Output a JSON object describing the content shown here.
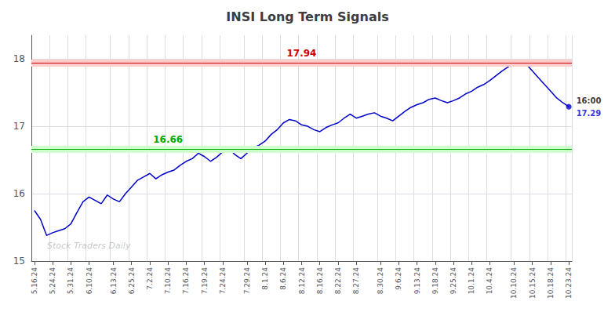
{
  "chart_data": {
    "type": "line",
    "title": "INSI Long Term Signals",
    "categories": [
      "5.16.24",
      null,
      null,
      "5.24.24",
      null,
      null,
      "5.31.24",
      null,
      null,
      "6.10.24",
      null,
      null,
      null,
      "6.13.24",
      null,
      null,
      "6.25.24",
      null,
      null,
      "7.2.24",
      null,
      null,
      "7.10.24",
      null,
      null,
      "7.16.24",
      null,
      null,
      "7.19.24",
      null,
      null,
      "7.24.24",
      null,
      null,
      null,
      "7.29.24",
      null,
      null,
      "8.1.24",
      null,
      null,
      "8.6.24",
      null,
      null,
      "8.12.24",
      null,
      null,
      "8.16.24",
      null,
      null,
      "8.22.24",
      null,
      null,
      "8.27.24",
      null,
      null,
      null,
      "8.30.24",
      null,
      null,
      "9.6.24",
      null,
      null,
      "9.13.24",
      null,
      null,
      "9.18.24",
      null,
      null,
      "9.25.24",
      null,
      null,
      "10.1.24",
      null,
      null,
      "10.4.24",
      null,
      null,
      null,
      "10.10.24",
      null,
      null,
      "10.15.24",
      null,
      null,
      "10.18.24",
      null,
      null,
      "10.23.24"
    ],
    "values": [
      15.75,
      15.62,
      15.38,
      15.42,
      15.45,
      15.48,
      15.55,
      15.72,
      15.88,
      15.95,
      15.9,
      15.85,
      15.98,
      15.92,
      15.88,
      16.0,
      16.1,
      16.2,
      16.25,
      16.3,
      16.22,
      16.28,
      16.32,
      16.35,
      16.42,
      16.48,
      16.52,
      16.6,
      16.55,
      16.48,
      16.54,
      16.62,
      16.68,
      16.58,
      16.52,
      16.6,
      16.68,
      16.72,
      16.78,
      16.88,
      16.95,
      17.05,
      17.1,
      17.08,
      17.02,
      17.0,
      16.95,
      16.92,
      16.98,
      17.02,
      17.05,
      17.12,
      17.18,
      17.12,
      17.15,
      17.18,
      17.2,
      17.15,
      17.12,
      17.08,
      17.15,
      17.22,
      17.28,
      17.32,
      17.35,
      17.4,
      17.42,
      17.38,
      17.35,
      17.38,
      17.42,
      17.48,
      17.52,
      17.58,
      17.62,
      17.68,
      17.75,
      17.82,
      17.88,
      17.95,
      17.98,
      17.92,
      17.82,
      17.72,
      17.62,
      17.52,
      17.42,
      17.35,
      17.29
    ],
    "color": "#0000cc",
    "hlines": [
      {
        "value": 17.94,
        "color": "#cc0000",
        "fill_color": "#ffcccc"
      },
      {
        "value": 16.66,
        "color": "#00aa00",
        "fill_color": "#ccffcc"
      }
    ],
    "end_label": {
      "time": "16:00",
      "price": 17.29
    },
    "watermark": "Stock Traders Daily",
    "ylim": [
      15.0,
      18.35
    ],
    "yticks": [
      15,
      16,
      17,
      18
    ],
    "grid": true
  }
}
